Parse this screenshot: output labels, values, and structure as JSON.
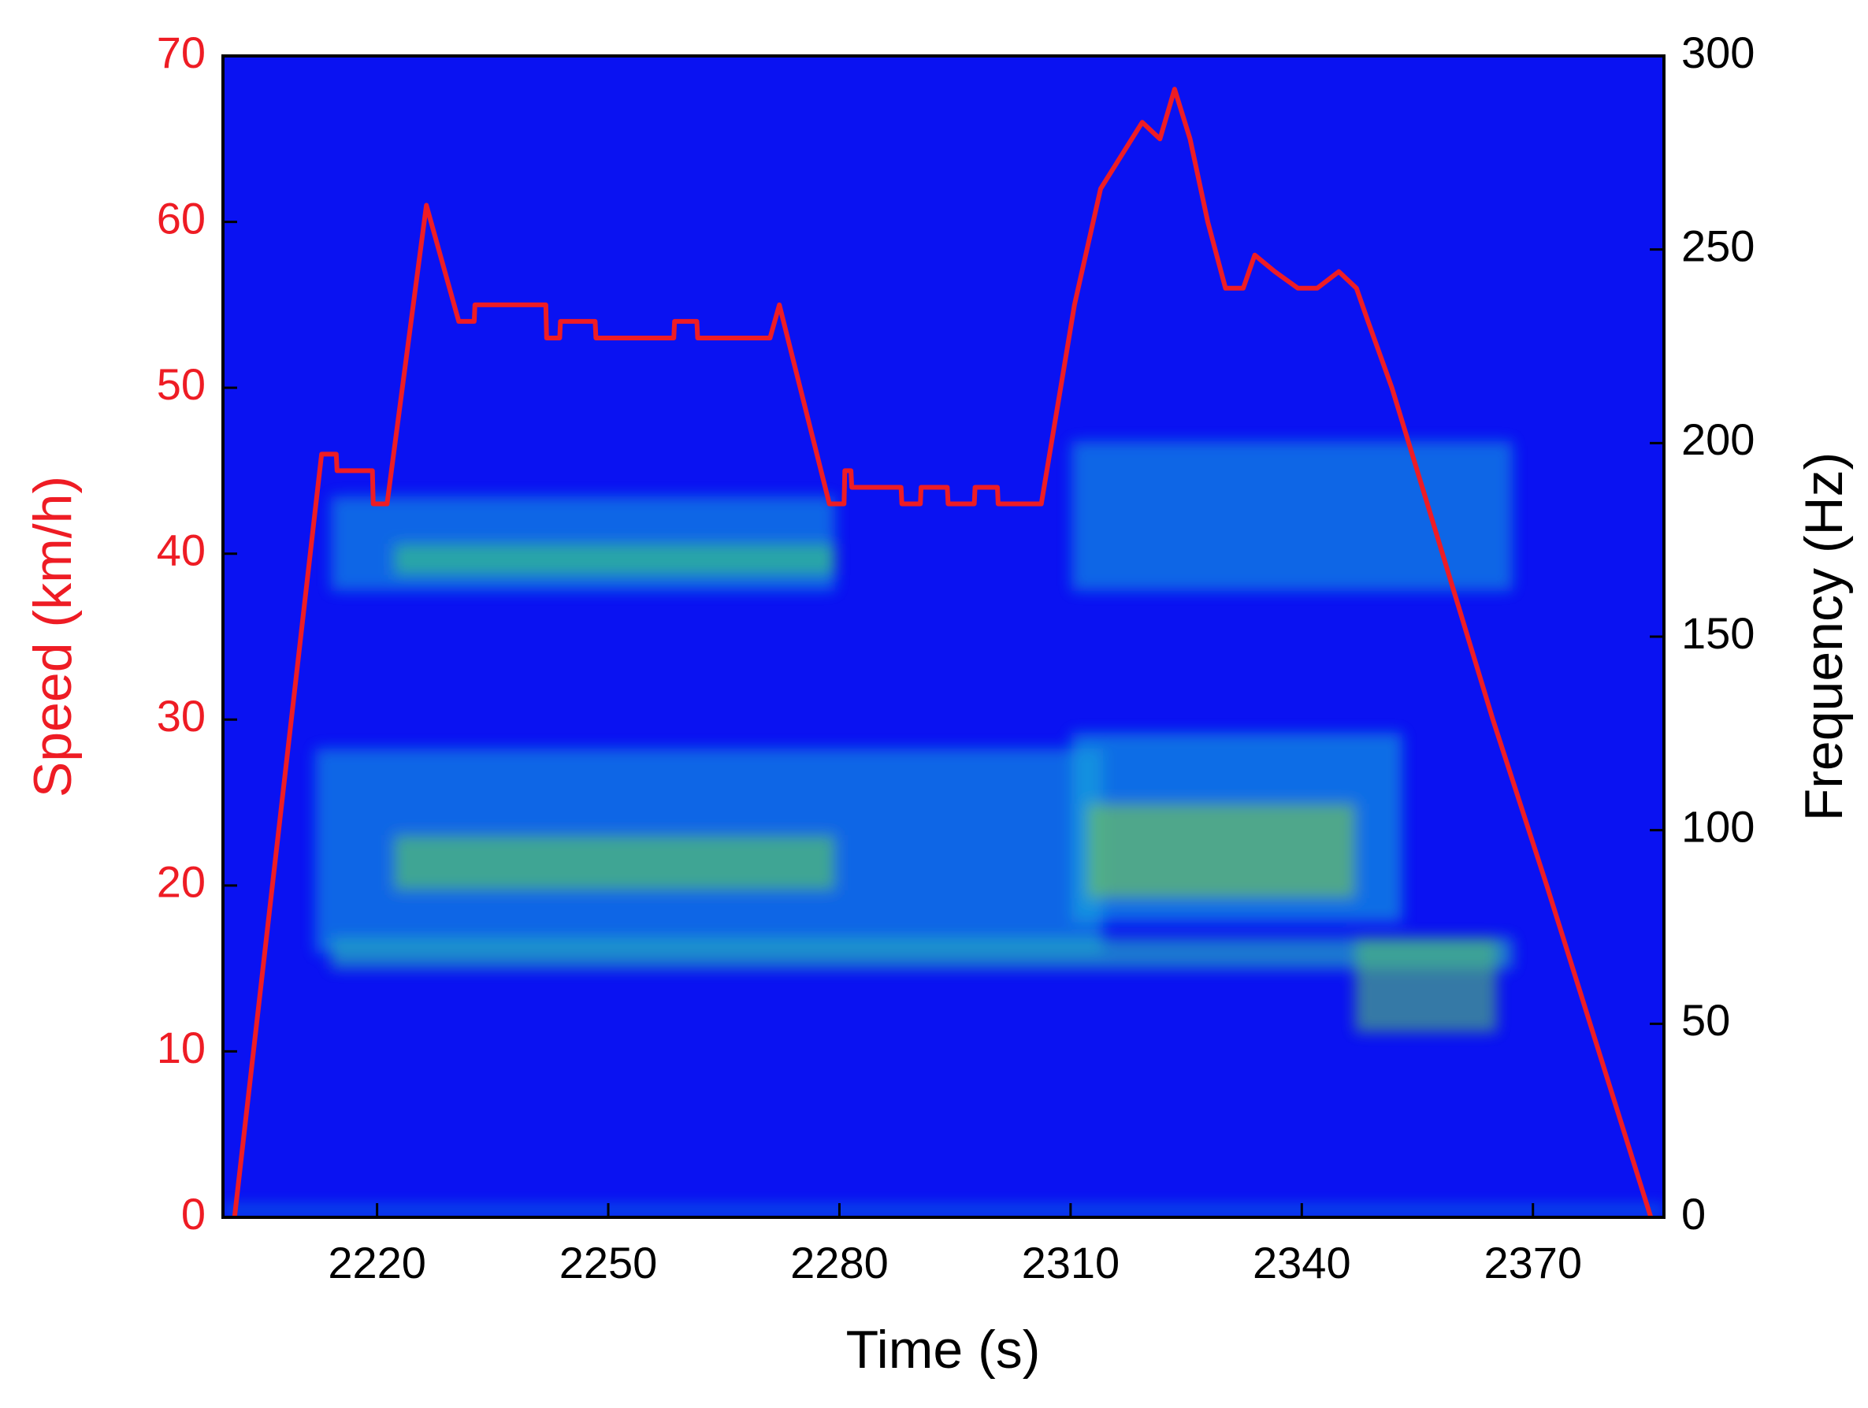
{
  "chart_data": {
    "type": "line",
    "xlabel": "Time (s)",
    "ylabel": "Speed (km/h)",
    "y2label": "Frequency (Hz)",
    "x": [
      2201.5,
      2212.8,
      2214.7,
      2214.8,
      2219.4,
      2219.5,
      2221.3,
      2226.4,
      2230.6,
      2232.6,
      2232.7,
      2241.9,
      2242.0,
      2243.7,
      2243.8,
      2248.3,
      2248.4,
      2258.5,
      2258.6,
      2261.5,
      2261.6,
      2271.0,
      2272.2,
      2278.7,
      2280.6,
      2280.7,
      2281.5,
      2281.6,
      2288.0,
      2288.1,
      2290.5,
      2290.6,
      2294.0,
      2294.1,
      2297.5,
      2297.6,
      2300.5,
      2300.6,
      2306.2,
      2310.5,
      2313.9,
      2319.3,
      2321.6,
      2323.5,
      2325.5,
      2327.8,
      2330.1,
      2332.4,
      2333.9,
      2336.5,
      2339.5,
      2342.0,
      2344.8,
      2347.1,
      2348.6,
      2351.7,
      2356.3,
      2364.8,
      2371.8,
      2385.3
    ],
    "series": [
      {
        "name": "Speed",
        "color": "#ee1c24",
        "values": [
          0,
          46,
          46,
          45,
          45,
          43,
          43,
          61,
          54,
          54,
          55,
          55,
          53,
          53,
          54,
          54,
          53,
          53,
          54,
          54,
          53,
          53,
          55,
          43,
          43,
          45,
          45,
          44,
          44,
          43,
          43,
          44,
          44,
          43,
          43,
          44,
          44,
          43,
          43,
          55,
          62,
          66,
          65,
          68,
          65,
          60,
          56,
          56,
          58,
          57,
          56,
          56,
          57,
          56,
          54,
          50,
          43,
          30,
          20,
          0
        ]
      }
    ],
    "xlim": [
      2200,
      2387
    ],
    "xticks": [
      2220,
      2250,
      2280,
      2310,
      2340,
      2370
    ],
    "ylim": [
      0,
      70
    ],
    "yticks": [
      0,
      10,
      20,
      30,
      40,
      50,
      60,
      70
    ],
    "y2lim": [
      0,
      300
    ],
    "y2ticks": [
      0,
      50,
      100,
      150,
      200,
      250,
      300
    ],
    "ylabel_color": "#ee1c24",
    "background": "#0a12f2"
  }
}
